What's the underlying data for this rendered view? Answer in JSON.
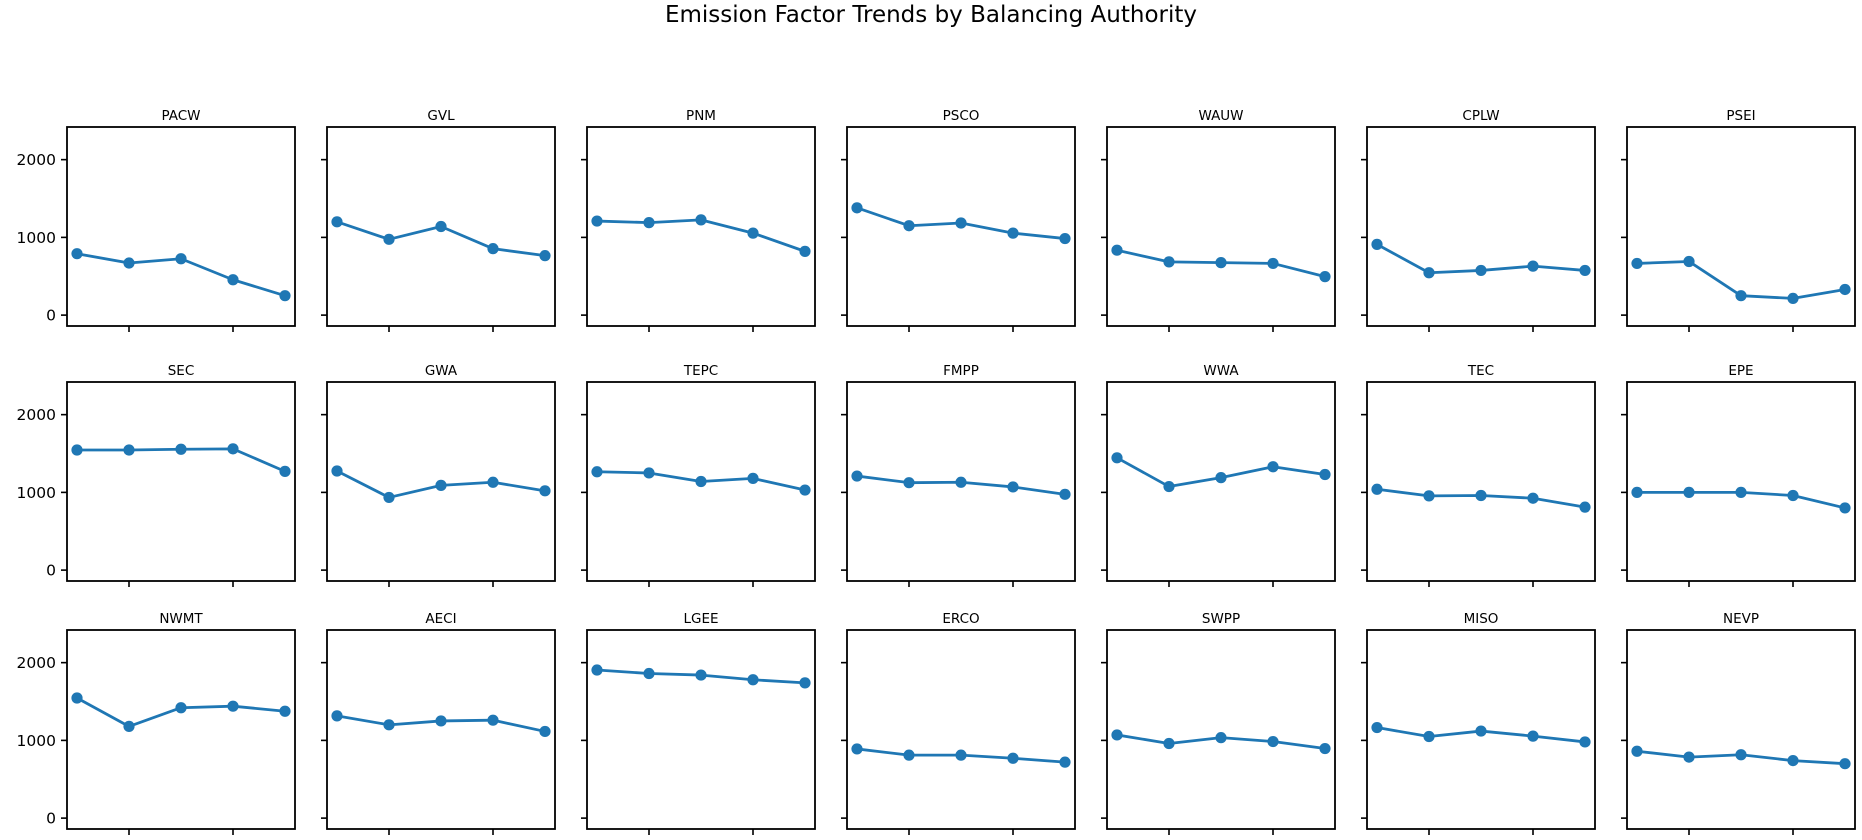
{
  "page_title": "Emission Factor Trends by Balancing Authority",
  "accent_color": "#1f77b4",
  "axis_color": "#000000",
  "chart_data": {
    "type": "line",
    "title": "Emission Factor Trends by Balancing Authority",
    "layout": {
      "rows": 3,
      "cols": 7,
      "grid": false,
      "legend": false,
      "marker": "circle",
      "y_ticks": [
        0,
        1000,
        2000
      ],
      "ylim": [
        -140,
        2420
      ],
      "x_points": 5,
      "x_tick_indices": [
        1,
        3
      ],
      "x_tick_labels": [
        "",
        ""
      ],
      "y_labels_on_first_column_only": true
    },
    "series": [
      {
        "name": "PACW",
        "values": [
          790,
          670,
          725,
          455,
          250
        ]
      },
      {
        "name": "GVL",
        "values": [
          1200,
          975,
          1140,
          855,
          765
        ]
      },
      {
        "name": "PNM",
        "values": [
          1210,
          1190,
          1225,
          1055,
          820
        ]
      },
      {
        "name": "PSCO",
        "values": [
          1380,
          1150,
          1185,
          1055,
          985
        ]
      },
      {
        "name": "WAUW",
        "values": [
          835,
          685,
          675,
          665,
          495
        ]
      },
      {
        "name": "CPLW",
        "values": [
          910,
          545,
          575,
          630,
          575
        ]
      },
      {
        "name": "PSEI",
        "values": [
          665,
          690,
          250,
          215,
          330
        ]
      },
      {
        "name": "SEC",
        "values": [
          1545,
          1545,
          1555,
          1560,
          1270
        ]
      },
      {
        "name": "GWA",
        "values": [
          1275,
          935,
          1090,
          1130,
          1020
        ]
      },
      {
        "name": "TEPC",
        "values": [
          1265,
          1250,
          1140,
          1180,
          1030
        ]
      },
      {
        "name": "FMPP",
        "values": [
          1210,
          1125,
          1130,
          1070,
          975
        ]
      },
      {
        "name": "WWA",
        "values": [
          1445,
          1075,
          1190,
          1330,
          1230
        ]
      },
      {
        "name": "TEC",
        "values": [
          1040,
          955,
          960,
          925,
          810
        ]
      },
      {
        "name": "EPE",
        "values": [
          1000,
          1000,
          1000,
          960,
          800
        ]
      },
      {
        "name": "NWMT",
        "values": [
          1545,
          1180,
          1420,
          1440,
          1375
        ]
      },
      {
        "name": "AECI",
        "values": [
          1315,
          1200,
          1250,
          1260,
          1115
        ]
      },
      {
        "name": "LGEE",
        "values": [
          1905,
          1860,
          1840,
          1780,
          1740
        ]
      },
      {
        "name": "ERCO",
        "values": [
          890,
          810,
          810,
          770,
          720
        ]
      },
      {
        "name": "SWPP",
        "values": [
          1070,
          960,
          1035,
          985,
          895
        ]
      },
      {
        "name": "MISO",
        "values": [
          1165,
          1050,
          1120,
          1055,
          980
        ]
      },
      {
        "name": "NEVP",
        "values": [
          860,
          785,
          815,
          740,
          700
        ]
      }
    ]
  }
}
